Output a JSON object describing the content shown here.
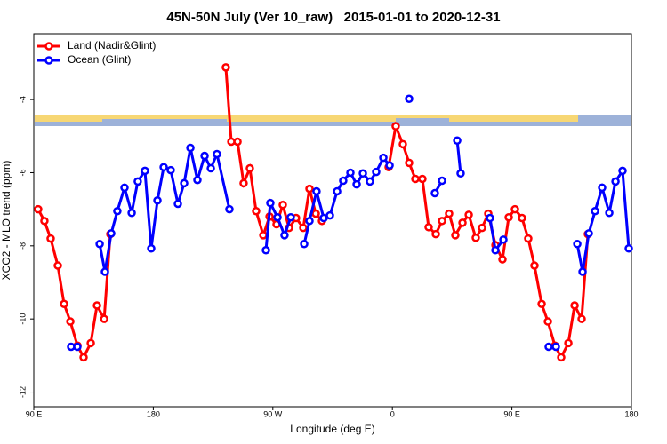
{
  "chart_data": {
    "type": "line",
    "title": "45N-50N July (Ver 10_raw)   2015-01-01 to 2020-12-31",
    "x_label": "Longitude (deg E)",
    "y_label": "XCO2 - MLO trend (ppm)",
    "xlim": [
      90,
      540
    ],
    "ylim": [
      -12.4,
      -2.2
    ],
    "xticks": [
      {
        "value": 90,
        "label": "90 E"
      },
      {
        "value": 180,
        "label": "180"
      },
      {
        "value": 270,
        "label": "90 W"
      },
      {
        "value": 360,
        "label": "0"
      },
      {
        "value": 450,
        "label": "90 E"
      },
      {
        "value": 540,
        "label": "180"
      }
    ],
    "yticks": [
      -12,
      -10,
      -8,
      -6,
      -4
    ],
    "legend": "top-left",
    "series": [
      {
        "name": "Land (Nadir&Glint)",
        "color": "#ff0000",
        "x": [
          93.3,
          98.0,
          102.7,
          108.1,
          112.8,
          117.5,
          122.9,
          127.5,
          132.9,
          137.6,
          143.0,
          147.6,
          null,
          234.6,
          238.7,
          243.4,
          248.0,
          252.7,
          257.4,
          262.8,
          267.5,
          272.8,
          277.5,
          282.2,
          287.5,
          292.9,
          297.6,
          302.3,
          307.0,
          null,
          357.2,
          362.5,
          367.9,
          372.6,
          377.3,
          382.6,
          387.3,
          392.7,
          397.4,
          402.7,
          407.4,
          412.8,
          417.5,
          422.8,
          427.5,
          432.2,
          437.6,
          442.9,
          447.6,
          452.3,
          457.6,
          462.3,
          467.0,
          472.4,
          477.1,
          482.4,
          487.1,
          492.5,
          497.2,
          502.5,
          507.2
        ],
        "values": [
          -7.0,
          -7.32,
          -7.8,
          -8.54,
          -9.59,
          -10.07,
          -10.73,
          -11.05,
          -10.66,
          -9.63,
          -10.0,
          -7.68,
          null,
          -3.12,
          -5.15,
          -5.15,
          -6.29,
          -5.88,
          -7.05,
          -7.71,
          -7.2,
          -7.41,
          -6.88,
          -7.51,
          -7.24,
          -7.51,
          -6.44,
          -7.12,
          -7.32,
          null,
          -5.85,
          -4.73,
          -5.22,
          -5.73,
          -6.17,
          -6.17,
          -7.49,
          -7.68,
          -7.32,
          -7.12,
          -7.71,
          -7.37,
          -7.15,
          -7.78,
          -7.51,
          -7.12,
          -7.98,
          -8.37,
          -7.22,
          -7.0,
          -7.24,
          -7.8,
          -8.54,
          -9.59,
          -10.07,
          -10.73,
          -11.05,
          -10.66,
          -9.63,
          -10.0,
          -7.68
        ]
      },
      {
        "name": "Ocean (Glint)",
        "color": "#0000ff",
        "x": [
          118.1,
          122.8,
          null,
          139.6,
          143.6,
          148.3,
          152.9,
          158.3,
          163.7,
          168.3,
          173.7,
          178.4,
          183.1,
          187.8,
          193.1,
          198.5,
          203.2,
          207.9,
          213.2,
          218.6,
          223.3,
          227.9,
          237.3,
          null,
          264.8,
          268.1,
          273.5,
          278.8,
          283.5,
          null,
          293.6,
          297.6,
          302.9,
          308.3,
          313.0,
          318.4,
          323.0,
          328.4,
          333.1,
          337.8,
          343.1,
          347.8,
          353.2,
          357.9,
          null,
          372.6,
          null,
          392.0,
          397.4,
          null,
          408.8,
          411.4,
          null,
          433.5,
          437.6,
          443.6,
          null,
          477.7,
          483.1,
          null,
          499.2,
          503.2,
          507.9,
          512.6,
          517.9,
          523.3,
          528.0,
          533.3,
          538.0
        ],
        "values": [
          -10.76,
          -10.76,
          null,
          -7.95,
          -8.71,
          -7.66,
          -7.05,
          -6.41,
          -7.1,
          -6.24,
          -5.95,
          -8.07,
          -6.76,
          -5.85,
          -5.93,
          -6.85,
          -6.29,
          -5.32,
          -6.2,
          -5.54,
          -5.88,
          -5.49,
          -7.0,
          null,
          -8.12,
          -6.83,
          -7.22,
          -7.71,
          -7.22,
          null,
          -7.95,
          -7.32,
          -6.51,
          -7.24,
          -7.17,
          -6.51,
          -6.22,
          -6.0,
          -6.32,
          -6.02,
          -6.24,
          -5.98,
          -5.59,
          -5.8,
          null,
          -3.98,
          null,
          -6.56,
          -6.22,
          null,
          -5.12,
          -6.02,
          null,
          -7.24,
          -8.12,
          -7.83,
          null,
          -10.76,
          -10.76,
          null,
          -7.95,
          -8.71,
          -7.66,
          -7.05,
          -6.41,
          -7.1,
          -6.24,
          -5.95,
          -8.07
        ]
      }
    ]
  }
}
